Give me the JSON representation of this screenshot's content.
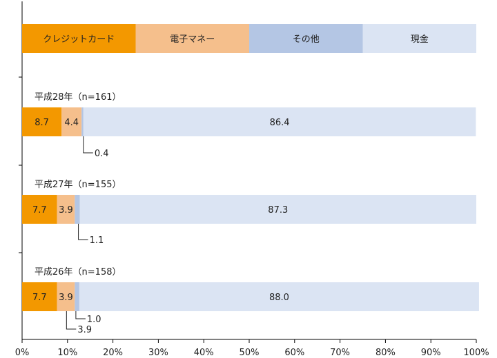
{
  "chart_data": {
    "type": "bar",
    "orientation": "horizontal",
    "stacked": true,
    "percent_scale": true,
    "xlim": [
      0,
      100
    ],
    "x_ticks": [
      0,
      10,
      20,
      30,
      40,
      50,
      60,
      70,
      80,
      90,
      100
    ],
    "x_tick_labels": [
      "0%",
      "10%",
      "20%",
      "30%",
      "40%",
      "50%",
      "60%",
      "70%",
      "80%",
      "90%",
      "100%"
    ],
    "grid": false,
    "legend": {
      "placement": "top (as a full-width stacked bar)",
      "entries": [
        "クレジットカード",
        "電子マネー",
        "その他",
        "現金"
      ]
    },
    "series": [
      {
        "name": "クレジットカード",
        "color": "#f39800"
      },
      {
        "name": "電子マネー",
        "color": "#f5bf8c"
      },
      {
        "name": "その他",
        "color": "#b4c6e4"
      },
      {
        "name": "現金",
        "color": "#dbe4f3"
      }
    ],
    "categories": [
      {
        "label": "平成28年（n=161）",
        "values": [
          8.7,
          4.4,
          0.4,
          86.4
        ],
        "value_labels": [
          "8.7",
          "4.4",
          "0.4",
          "86.4"
        ]
      },
      {
        "label": "平成27年（n=155）",
        "values": [
          7.7,
          3.9,
          1.1,
          87.3
        ],
        "value_labels": [
          "7.7",
          "3.9",
          "1.1",
          "87.3"
        ]
      },
      {
        "label": "平成26年（n=158）",
        "values": [
          7.7,
          3.9,
          1.0,
          88.0
        ],
        "value_labels": [
          "7.7",
          "3.9",
          "1.0",
          "88.0"
        ]
      }
    ]
  }
}
